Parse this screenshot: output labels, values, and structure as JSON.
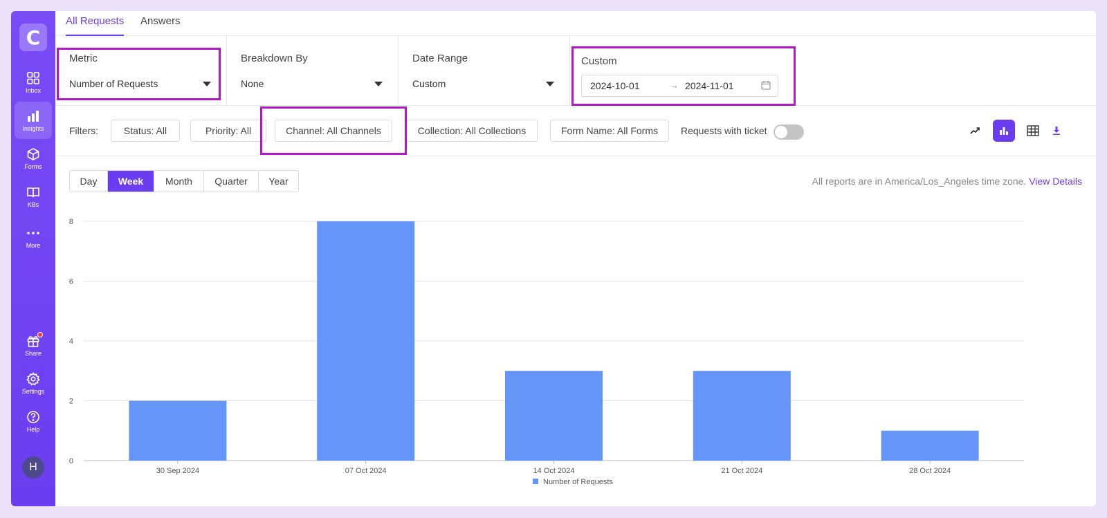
{
  "sidebar": {
    "logo": "C",
    "items": [
      {
        "label": "Inbox",
        "icon": "inbox-icon"
      },
      {
        "label": "Insights",
        "icon": "bar-chart-icon",
        "active": true
      },
      {
        "label": "Forms",
        "icon": "cube-icon"
      },
      {
        "label": "KBs",
        "icon": "book-icon"
      },
      {
        "label": "More",
        "icon": "more-dots-icon"
      },
      {
        "label": "Share",
        "icon": "gift-icon",
        "badge": true
      },
      {
        "label": "Settings",
        "icon": "gear-icon"
      },
      {
        "label": "Help",
        "icon": "help-icon"
      }
    ],
    "avatar": "H"
  },
  "tabs": [
    {
      "label": "All Requests",
      "active": true
    },
    {
      "label": "Answers",
      "active": false
    }
  ],
  "selectors": {
    "metric": {
      "label": "Metric",
      "value": "Number of Requests"
    },
    "breakdown": {
      "label": "Breakdown By",
      "value": "None"
    },
    "date_range": {
      "label": "Date Range",
      "value": "Custom"
    },
    "custom": {
      "label": "Custom",
      "start": "2024-10-01",
      "arrow": "→",
      "end": "2024-11-01"
    }
  },
  "filters": {
    "label": "Filters:",
    "buttons": [
      "Status: All",
      "Priority: All",
      "Channel: All Channels",
      "Collection: All Collections",
      "Form Name: All Forms"
    ],
    "ticket_label": "Requests with ticket",
    "ticket_toggle_on": false
  },
  "periods": {
    "options": [
      "Day",
      "Week",
      "Month",
      "Quarter",
      "Year"
    ],
    "selected": "Week"
  },
  "timezone_note": {
    "text": "All reports are in America/Los_Angeles time zone.",
    "link": "View Details"
  },
  "colors": {
    "accent": "#6a3df0",
    "bar": "#6495f7",
    "highlight": "#b118c8"
  },
  "chart_data": {
    "type": "bar",
    "categories": [
      "30 Sep 2024",
      "07 Oct 2024",
      "14 Oct 2024",
      "21 Oct 2024",
      "28 Oct 2024"
    ],
    "series": [
      {
        "name": "Number of Requests",
        "values": [
          2,
          8,
          3,
          3,
          1
        ]
      }
    ],
    "ylim": [
      0,
      8
    ],
    "yticks": [
      0,
      2,
      4,
      6,
      8
    ],
    "grid": true,
    "legend": "bottom-center"
  }
}
